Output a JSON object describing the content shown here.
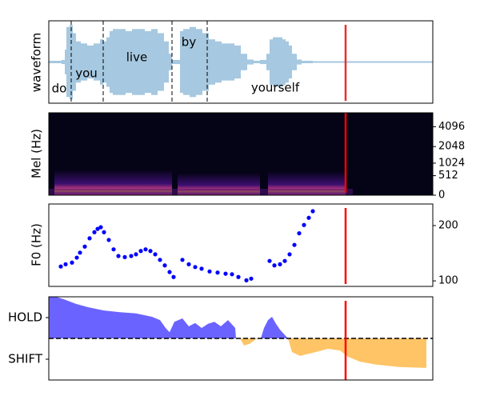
{
  "chart_data": [
    {
      "type": "waveform",
      "ylabel": "waveform",
      "color": "#a6c8e0",
      "xlim": [
        0,
        480
      ],
      "ylim": [
        -1,
        1
      ],
      "x": [
        0,
        8,
        16,
        20,
        22,
        26,
        30,
        34,
        40,
        48,
        56,
        64,
        68,
        72,
        76,
        80,
        88,
        96,
        104,
        112,
        120,
        128,
        136,
        144,
        150,
        154,
        160,
        164,
        168,
        172,
        176,
        184,
        192,
        200,
        208,
        216,
        224,
        232,
        240,
        248,
        256,
        264,
        272,
        276,
        280,
        284,
        288,
        292,
        296,
        300,
        304,
        310,
        316,
        330,
        360,
        400,
        440,
        479
      ],
      "values": [
        0.03,
        0.03,
        0.05,
        0.3,
        0.85,
        0.9,
        0.7,
        0.5,
        0.45,
        0.4,
        0.45,
        0.55,
        0.5,
        0.6,
        0.75,
        0.8,
        0.8,
        0.75,
        0.8,
        0.8,
        0.75,
        0.8,
        0.7,
        0.5,
        0.2,
        0.05,
        0.05,
        0.75,
        0.8,
        0.8,
        0.85,
        0.8,
        0.7,
        0.55,
        0.5,
        0.45,
        0.45,
        0.4,
        0.2,
        0.06,
        0.03,
        0.05,
        0.2,
        0.55,
        0.6,
        0.6,
        0.6,
        0.55,
        0.5,
        0.4,
        0.2,
        0.06,
        0.03,
        0.02,
        0.02,
        0.02,
        0.02,
        0.02
      ],
      "words": [
        "do",
        "you",
        "live",
        "by",
        "yourself"
      ],
      "boundaries": [
        28,
        68,
        154,
        198
      ],
      "cursor": 371,
      "cursor_color": "#e8302a"
    },
    {
      "type": "heatmap",
      "ylabel": "Mel (Hz)",
      "scale": "mel",
      "xlim": [
        0,
        480
      ],
      "ylim": [
        0,
        6400
      ],
      "yticks": [
        0,
        512,
        1024,
        2048,
        4096
      ],
      "cursor": 371,
      "cursor_color": "#ff0000"
    },
    {
      "type": "scatter",
      "ylabel": "F0 (Hz)",
      "color": "#0000ff",
      "xlim": [
        0,
        480
      ],
      "ylim": [
        90,
        239
      ],
      "yticks": [
        100,
        200
      ],
      "x": [
        15,
        21,
        29,
        35,
        39,
        45,
        51,
        57,
        61,
        65,
        69,
        75,
        81,
        87,
        95,
        103,
        109,
        115,
        121,
        127,
        133,
        139,
        145,
        151,
        156,
        167,
        175,
        183,
        191,
        201,
        211,
        221,
        229,
        237,
        247,
        253,
        276,
        282,
        289,
        295,
        301,
        307,
        313,
        319,
        325,
        330
      ],
      "values": [
        126,
        130,
        133,
        142,
        151,
        162,
        177,
        188,
        194,
        197,
        188,
        174,
        157,
        145,
        143,
        145,
        148,
        154,
        157,
        154,
        148,
        138,
        128,
        116,
        107,
        138,
        130,
        125,
        122,
        117,
        115,
        113,
        112,
        107,
        101,
        104,
        136,
        128,
        130,
        136,
        148,
        165,
        186,
        201,
        214,
        226
      ],
      "cursor": 371,
      "cursor_color": "#ff0000"
    },
    {
      "type": "area",
      "xlim": [
        0,
        480
      ],
      "ylim": [
        -1,
        1
      ],
      "yticks": [
        {
          "value": 0.5,
          "label": "HOLD"
        },
        {
          "value": -0.5,
          "label": "SHIFT"
        }
      ],
      "pos_color": "#6b63ff",
      "neg_color": "#ffc466",
      "x": [
        0,
        9,
        19,
        34,
        49,
        69,
        89,
        109,
        129,
        139,
        146,
        151,
        157,
        167,
        175,
        183,
        191,
        199,
        207,
        215,
        224,
        233,
        234,
        239,
        244,
        251,
        259,
        265,
        269,
        274,
        279,
        284,
        289,
        296,
        299,
        304,
        314,
        329,
        349,
        364,
        374,
        389,
        409,
        439,
        472
      ],
      "values": [
        1.0,
        1.0,
        0.94,
        0.83,
        0.75,
        0.67,
        0.63,
        0.6,
        0.52,
        0.44,
        0.25,
        0.15,
        0.4,
        0.48,
        0.29,
        0.37,
        0.25,
        0.35,
        0.4,
        0.29,
        0.44,
        0.25,
        0,
        0,
        -0.17,
        -0.13,
        -0.02,
        0,
        0.25,
        0.44,
        0.52,
        0.35,
        0.21,
        0.06,
        0,
        -0.33,
        -0.42,
        -0.35,
        -0.25,
        -0.29,
        -0.44,
        -0.56,
        -0.63,
        -0.69,
        -0.71
      ],
      "cursor": 371,
      "cursor_color": "#ff0000"
    }
  ]
}
